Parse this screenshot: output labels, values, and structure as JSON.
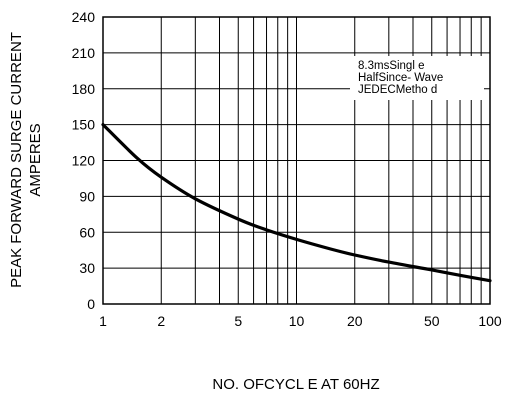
{
  "chart_data": {
    "type": "line",
    "xlabel": "NO. OFCYCL E AT 60HZ",
    "ylabel_lines": [
      "PEAK FORWARD SURGE CURRENT",
      "AMPERES"
    ],
    "x_scale": "log",
    "xlim": [
      1,
      100
    ],
    "ylim": [
      0,
      240
    ],
    "x_ticks": [
      1,
      2,
      5,
      10,
      20,
      50,
      100
    ],
    "x_tick_labels": [
      "1",
      "2",
      "5",
      "10",
      "20",
      "50",
      "100"
    ],
    "y_ticks": [
      0,
      30,
      60,
      90,
      120,
      150,
      180,
      210,
      240
    ],
    "y_tick_labels": [
      "0",
      "30",
      "60",
      "90",
      "120",
      "150",
      "180",
      "210",
      "240"
    ],
    "grid": true,
    "annotation_lines": [
      "8.3msSingl e",
      "HalfSince- Wave",
      "JEDECMetho d"
    ],
    "series": [
      {
        "x": [
          1,
          1.5,
          2,
          3,
          5,
          7,
          10,
          15,
          20,
          30,
          50,
          70,
          100
        ],
        "y": [
          150,
          122,
          106,
          88,
          71,
          62,
          54,
          46,
          41,
          35,
          28.5,
          24,
          19.5
        ]
      }
    ]
  }
}
